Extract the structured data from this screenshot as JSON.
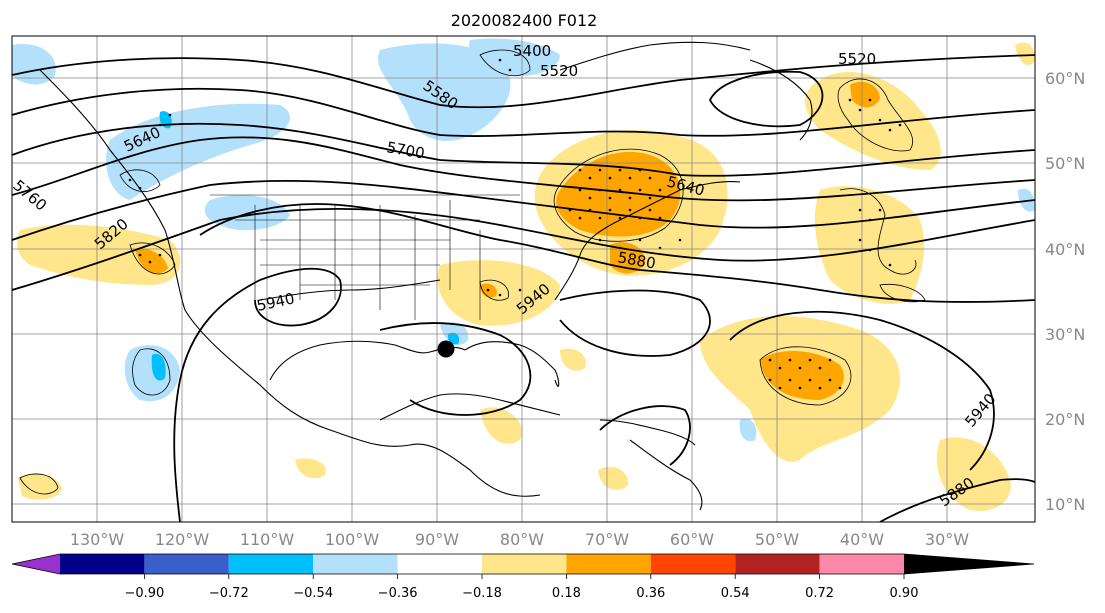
{
  "title": "2020082400 F012",
  "lon_labels": [
    "130°W",
    "120°W",
    "110°W",
    "100°W",
    "90°W",
    "80°W",
    "70°W",
    "60°W",
    "50°W",
    "40°W",
    "30°W"
  ],
  "lat_labels": [
    "60°N",
    "50°N",
    "40°N",
    "30°N",
    "20°N",
    "10°N"
  ],
  "contour_labels": [
    "5400",
    "5520",
    "5520",
    "5580",
    "5640",
    "5700",
    "5640",
    "5760",
    "5820",
    "5880",
    "5940",
    "5940",
    "5940",
    "5880"
  ],
  "colorbar": {
    "tick_labels": [
      "−0.90",
      "−0.72",
      "−0.54",
      "−0.36",
      "−0.18",
      "0.18",
      "0.36",
      "0.54",
      "0.72",
      "0.90"
    ],
    "colors": [
      "#9932cc",
      "#00008b",
      "#3a5fcd",
      "#00bfff",
      "#b3e0fa",
      "#ffffff",
      "#ffe68a",
      "#ffa500",
      "#ff4500",
      "#b22222",
      "#ff88aa"
    ]
  },
  "marker": "storm-position-dot",
  "colors": {
    "positive_light": "#ffe68a",
    "positive_mid": "#ffa500",
    "negative_light": "#b3e0fa",
    "negative_mid": "#00bfff",
    "contour": "#000000",
    "grid": "#888888"
  }
}
